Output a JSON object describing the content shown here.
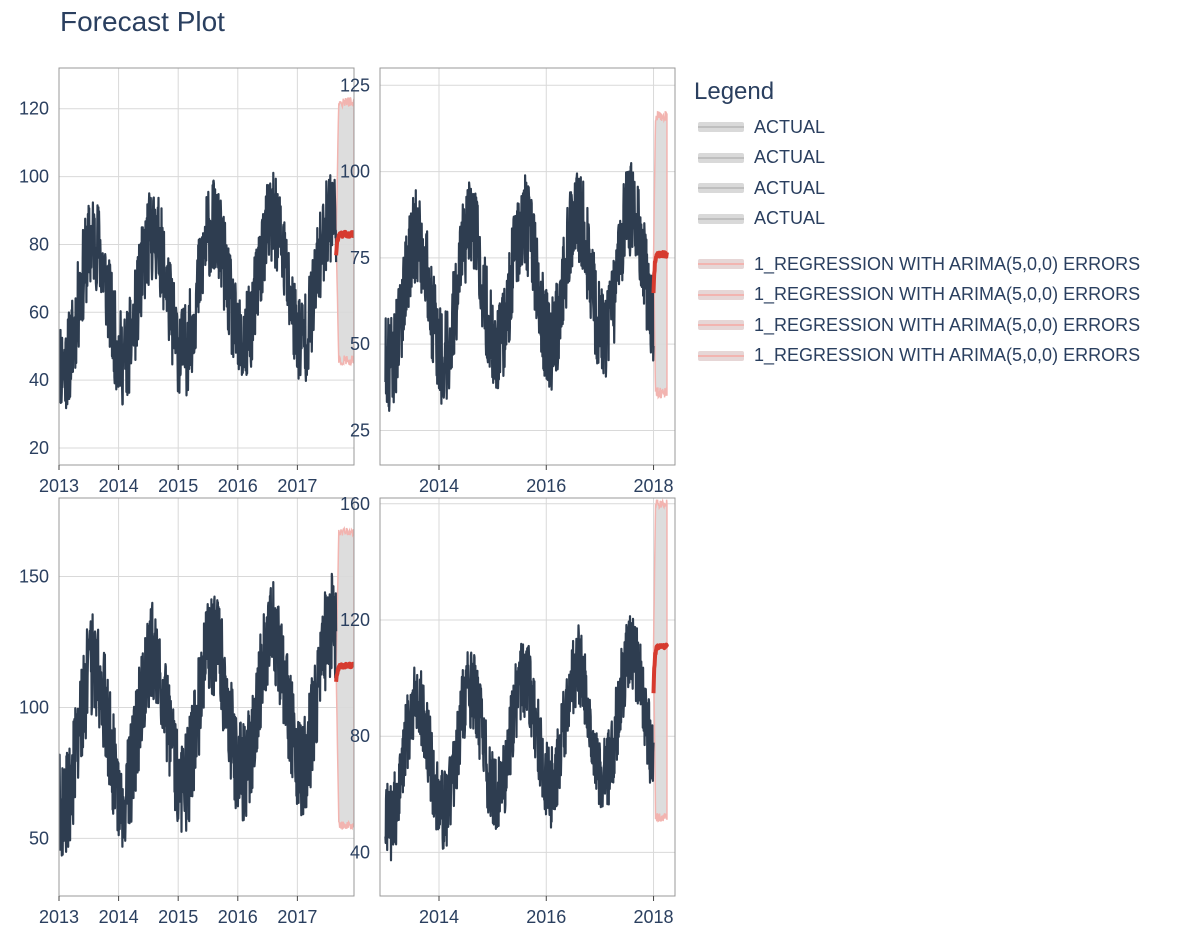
{
  "title": "Forecast Plot",
  "legend": {
    "title": "Legend",
    "actual_items": [
      "ACTUAL",
      "ACTUAL",
      "ACTUAL",
      "ACTUAL"
    ],
    "forecast_items": [
      "1_REGRESSION WITH ARIMA(5,0,0) ERRORS",
      "1_REGRESSION WITH ARIMA(5,0,0) ERRORS",
      "1_REGRESSION WITH ARIMA(5,0,0) ERRORS",
      "1_REGRESSION WITH ARIMA(5,0,0) ERRORS"
    ]
  },
  "colors": {
    "actual": "#2e3d50",
    "forecast": "#d63b2f",
    "interval_fill": "#d9d9d9",
    "interval_edge": "#f2b4b0",
    "grid": "#d9d9d9",
    "axis_text": "#2a3f5f"
  },
  "chart_data": [
    {
      "type": "line",
      "xlim": [
        2013.0,
        2017.95
      ],
      "ylim": [
        15,
        132
      ],
      "xticks": [
        2013,
        2014,
        2015,
        2016,
        2017
      ],
      "xtick_labels": [
        "2013",
        "2014",
        "2015",
        "2016",
        "2017"
      ],
      "yticks": [
        20,
        40,
        60,
        80,
        100,
        120
      ],
      "ytick_labels": [
        "20",
        "40",
        "60",
        "80",
        "100",
        "120"
      ],
      "actual_range": [
        2013.0,
        2017.65
      ],
      "forecast_range": [
        2017.65,
        2017.95
      ],
      "actual_profile": {
        "base": 62,
        "amp": 18,
        "noise": 14,
        "trend": 2,
        "min": 21,
        "max": 126
      },
      "forecast": {
        "start": 77,
        "level": 83,
        "lower": 46,
        "upper": 122
      },
      "series": [
        {
          "name": "ACTUAL"
        },
        {
          "name": "1_REGRESSION WITH ARIMA(5,0,0) ERRORS"
        }
      ]
    },
    {
      "type": "line",
      "xlim": [
        2012.9,
        2018.4
      ],
      "ylim": [
        15,
        130
      ],
      "xticks": [
        2014,
        2016,
        2018
      ],
      "xtick_labels": [
        "2014",
        "2016",
        "2018"
      ],
      "yticks": [
        25,
        50,
        75,
        100,
        125
      ],
      "ytick_labels": [
        "25",
        "50",
        "75",
        "100",
        "125"
      ],
      "actual_range": [
        2013.0,
        2018.0
      ],
      "forecast_range": [
        2018.0,
        2018.25
      ],
      "actual_profile": {
        "base": 62,
        "amp": 18,
        "noise": 14,
        "trend": 2,
        "min": 21,
        "max": 126
      },
      "forecast": {
        "start": 65,
        "level": 76,
        "lower": 36,
        "upper": 116
      },
      "series": [
        {
          "name": "ACTUAL"
        },
        {
          "name": "1_REGRESSION WITH ARIMA(5,0,0) ERRORS"
        }
      ]
    },
    {
      "type": "line",
      "xlim": [
        2013.0,
        2017.95
      ],
      "ylim": [
        28,
        180
      ],
      "xticks": [
        2013,
        2014,
        2015,
        2016,
        2017
      ],
      "xtick_labels": [
        "2013",
        "2014",
        "2015",
        "2016",
        "2017"
      ],
      "yticks": [
        50,
        100,
        150
      ],
      "ytick_labels": [
        "50",
        "100",
        "150"
      ],
      "actual_range": [
        2013.0,
        2017.65
      ],
      "forecast_range": [
        2017.65,
        2017.95
      ],
      "actual_profile": {
        "base": 88,
        "amp": 26,
        "noise": 20,
        "trend": 4,
        "min": 36,
        "max": 178
      },
      "forecast": {
        "start": 110,
        "level": 116,
        "lower": 55,
        "upper": 167
      },
      "series": [
        {
          "name": "ACTUAL"
        },
        {
          "name": "1_REGRESSION WITH ARIMA(5,0,0) ERRORS"
        }
      ]
    },
    {
      "type": "line",
      "xlim": [
        2012.9,
        2018.4
      ],
      "ylim": [
        25,
        162
      ],
      "xticks": [
        2014,
        2016,
        2018
      ],
      "xtick_labels": [
        "2014",
        "2016",
        "2018"
      ],
      "yticks": [
        40,
        80,
        120,
        160
      ],
      "ytick_labels": [
        "40",
        "80",
        "120",
        "160"
      ],
      "actual_range": [
        2013.0,
        2018.0
      ],
      "forecast_range": [
        2018.0,
        2018.25
      ],
      "actual_profile": {
        "base": 70,
        "amp": 20,
        "noise": 14,
        "trend": 4,
        "min": 32,
        "max": 127
      },
      "forecast": {
        "start": 95,
        "level": 111,
        "lower": 52,
        "upper": 160
      },
      "series": [
        {
          "name": "ACTUAL"
        },
        {
          "name": "1_REGRESSION WITH ARIMA(5,0,0) ERRORS"
        }
      ]
    }
  ]
}
